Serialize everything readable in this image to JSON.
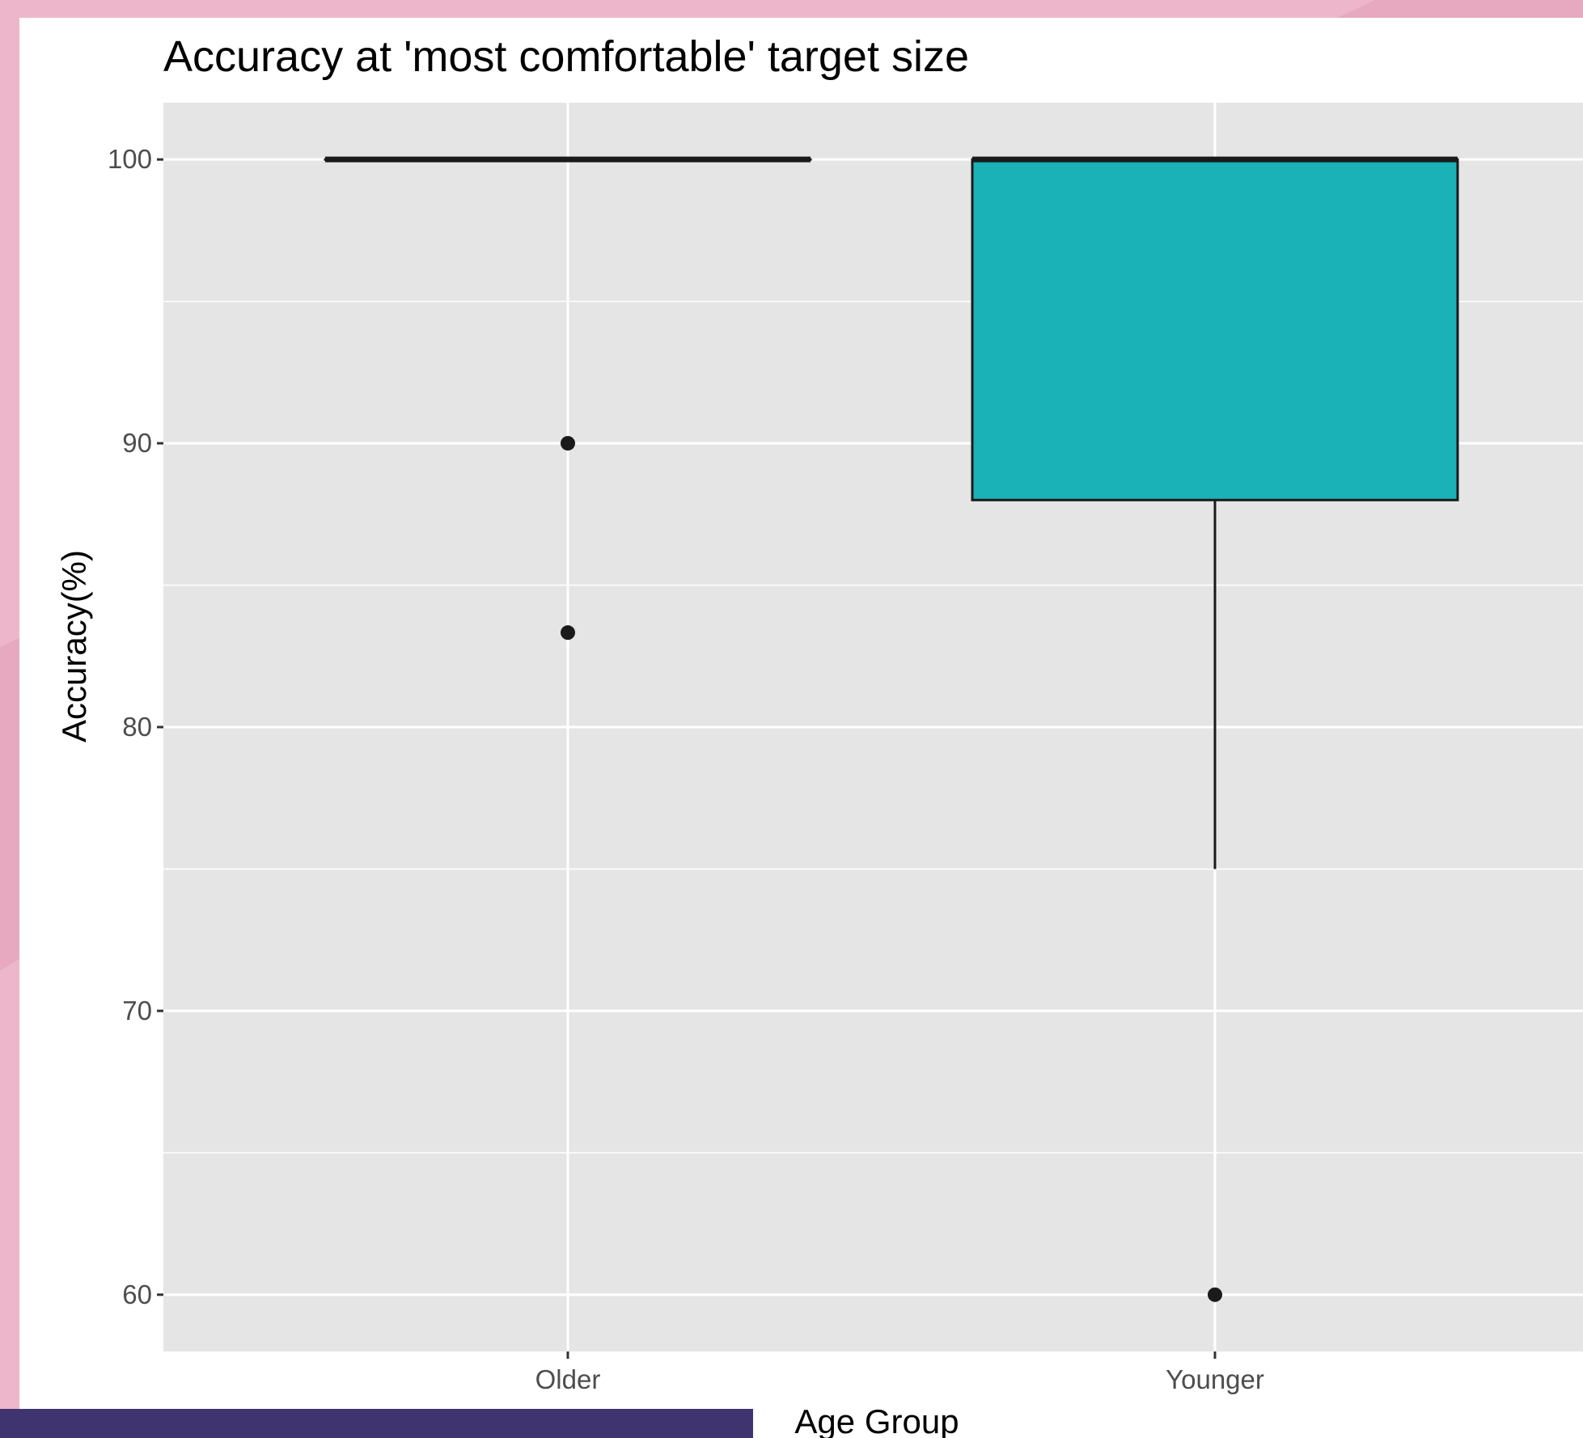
{
  "colors": {
    "page_background": "#eeb6cb",
    "panel_background": "#e5e5e5",
    "grid": "#ffffff",
    "box_fill": "#1ab2b6",
    "box_outline": "#1a1a1a",
    "bottom_bar": "#3f3470"
  },
  "chart_data": {
    "type": "boxplot",
    "title": "Accuracy at 'most comfortable' target size",
    "xlabel": "Age Group",
    "ylabel": "Accuracy(%)",
    "categories": [
      "Older",
      "Younger"
    ],
    "ylim": [
      58,
      102
    ],
    "yticks": [
      60,
      70,
      80,
      90,
      100
    ],
    "grid": true,
    "legend": "none",
    "boxes": [
      {
        "category": "Older",
        "lower_whisker": 100,
        "q1": 100,
        "median": 100,
        "q3": 100,
        "upper_whisker": 100,
        "outliers": [
          90,
          83.33
        ]
      },
      {
        "category": "Younger",
        "lower_whisker": 75,
        "q1": 88,
        "median": 100,
        "q3": 100,
        "upper_whisker": 100,
        "outliers": [
          60
        ]
      }
    ]
  }
}
